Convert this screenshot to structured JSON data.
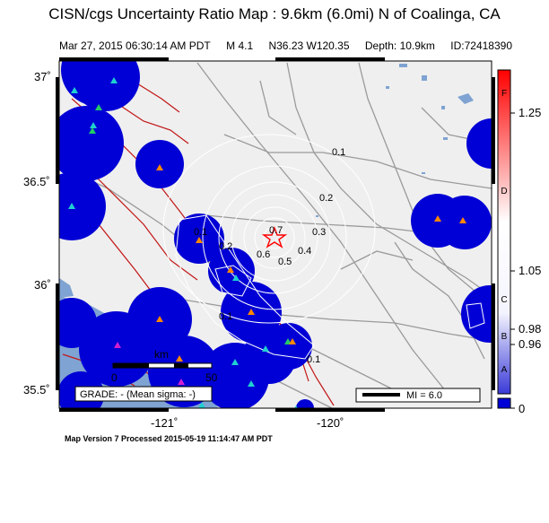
{
  "header": {
    "title": "CISN/cgs Uncertainty Ratio Map : 9.6km (6.0mi) N of Coalinga, CA",
    "datetime": "Mar 27, 2015 06:30:14 AM PDT",
    "magnitude": "M 4.1",
    "location": "N36.23 W120.35",
    "depth": "Depth: 10.9km",
    "event_id": "ID:72418390"
  },
  "axes": {
    "lat_ticks": [
      "37˚",
      "36.5˚",
      "36˚",
      "35.5˚"
    ],
    "lon_ticks": [
      "-121˚",
      "-120˚"
    ]
  },
  "contour_labels": [
    "0.1",
    "0.2",
    "0.3",
    "0.4",
    "0.5",
    "0.6",
    "0.7",
    "0.1",
    "0.2",
    "0.1",
    "0.1"
  ],
  "scale_bar": {
    "unit": "km",
    "start": "0",
    "end": "50"
  },
  "grade_box": "GRADE: - (Mean sigma: -)",
  "mi_legend": "MI = 6.0",
  "colorbar": {
    "letters": [
      "F",
      "D",
      "C",
      "B",
      "A"
    ],
    "values": [
      "1.25",
      "1.05",
      "0.98",
      "0.96",
      "0"
    ]
  },
  "footer": "Map Version 7 Processed 2015-05-19 11:14:47 AM PDT",
  "colors": {
    "land": "#efefef",
    "ocean": "#7fa3d2",
    "station_disc": "#0000d6",
    "epicenter": "#ff0000"
  }
}
